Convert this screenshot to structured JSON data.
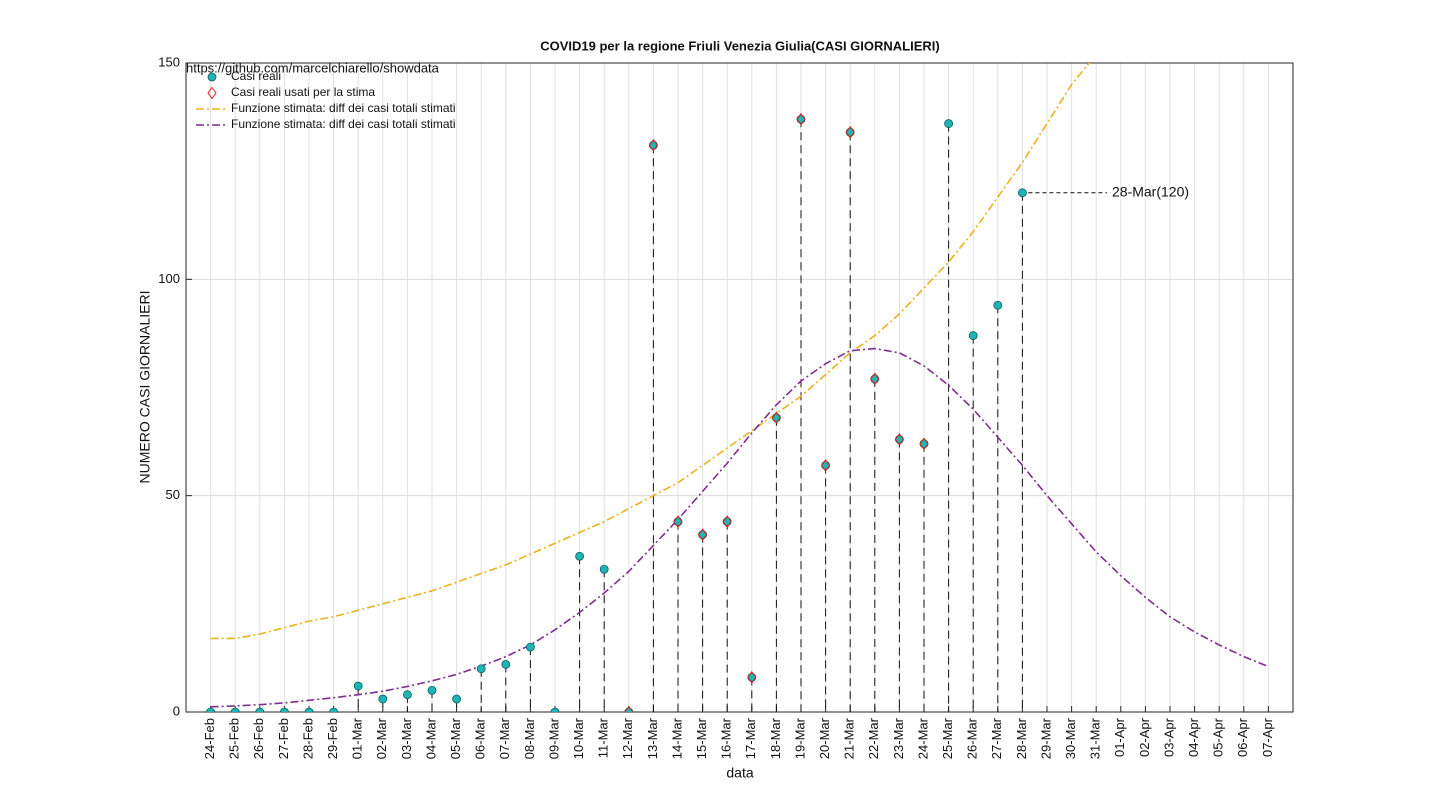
{
  "chart_data": {
    "type": "line",
    "title": "COVID19 per la regione Friuli Venezia Giulia(CASI GIORNALIERI)",
    "watermark": "https://github.com/marcelchiarello/showdata",
    "x_label": "data",
    "y_label": "NUMERO CASI GIORNALIERI",
    "annotation": "28-Mar(120)",
    "categories": [
      "24-Feb",
      "25-Feb",
      "26-Feb",
      "27-Feb",
      "28-Feb",
      "29-Feb",
      "01-Mar",
      "02-Mar",
      "03-Mar",
      "04-Mar",
      "05-Mar",
      "06-Mar",
      "07-Mar",
      "08-Mar",
      "09-Mar",
      "10-Mar",
      "11-Mar",
      "12-Mar",
      "13-Mar",
      "14-Mar",
      "15-Mar",
      "16-Mar",
      "17-Mar",
      "18-Mar",
      "19-Mar",
      "20-Mar",
      "21-Mar",
      "22-Mar",
      "23-Mar",
      "24-Mar",
      "25-Mar",
      "26-Mar",
      "27-Mar",
      "28-Mar",
      "29-Mar",
      "30-Mar",
      "31-Mar",
      "01-Apr",
      "02-Apr",
      "03-Apr",
      "04-Apr",
      "05-Apr",
      "06-Apr",
      "07-Apr"
    ],
    "ylim": [
      0,
      150
    ],
    "yticks": [
      0,
      50,
      100,
      150
    ],
    "grid": true,
    "legend": "top-left",
    "series": [
      {
        "name": "Casi reali",
        "color": "#1fb5b5",
        "marker": "o",
        "stems": true,
        "values": [
          0,
          0,
          0,
          0,
          0,
          0,
          6,
          3,
          4,
          5,
          3,
          10,
          11,
          15,
          0,
          36,
          33,
          0,
          131,
          44,
          41,
          44,
          8,
          68,
          137,
          57,
          134,
          77,
          63,
          62,
          136,
          87,
          94,
          120,
          null,
          null,
          null,
          null,
          null,
          null,
          null,
          null,
          null,
          null
        ]
      },
      {
        "name": "Casi reali usati per la stima",
        "color": "#e02020",
        "marker": "diamond",
        "values": [
          null,
          null,
          null,
          null,
          null,
          null,
          null,
          null,
          null,
          null,
          null,
          null,
          null,
          null,
          null,
          null,
          null,
          0,
          131,
          44,
          41,
          44,
          8,
          68,
          137,
          57,
          134,
          77,
          63,
          62,
          null,
          null,
          null,
          null,
          null,
          null,
          null,
          null,
          null,
          null,
          null,
          null,
          null,
          null
        ]
      },
      {
        "name": "Funzione stimata: diff dei casi totali stimati",
        "color": "#edb120",
        "linestyle": "-.",
        "values": [
          17,
          17,
          18,
          19.5,
          21,
          22,
          23.5,
          25,
          26.5,
          28,
          30,
          32,
          34,
          36.5,
          39,
          41.5,
          44,
          47,
          50,
          53,
          57,
          61,
          65,
          69,
          73,
          78,
          83,
          87,
          92,
          98,
          104,
          111,
          119,
          127,
          136,
          145,
          152,
          null,
          null,
          null,
          null,
          null,
          null,
          null
        ]
      },
      {
        "name": "Funzione stimata: diff dei casi totali stimati",
        "color": "#7e2f8e",
        "linestyle": "-.",
        "values": [
          1.2,
          1.4,
          1.7,
          2.1,
          2.7,
          3.3,
          4.0,
          4.8,
          5.9,
          7.2,
          8.7,
          10.6,
          12.8,
          15.5,
          19,
          23,
          27.5,
          32.5,
          38.5,
          44.5,
          51,
          57.5,
          64.5,
          71,
          76.5,
          80.5,
          83.5,
          84,
          83,
          80,
          75.5,
          70,
          63.5,
          57,
          50,
          43.5,
          37,
          31.5,
          26.5,
          22,
          18.5,
          15.5,
          12.8,
          10.5
        ]
      }
    ]
  }
}
